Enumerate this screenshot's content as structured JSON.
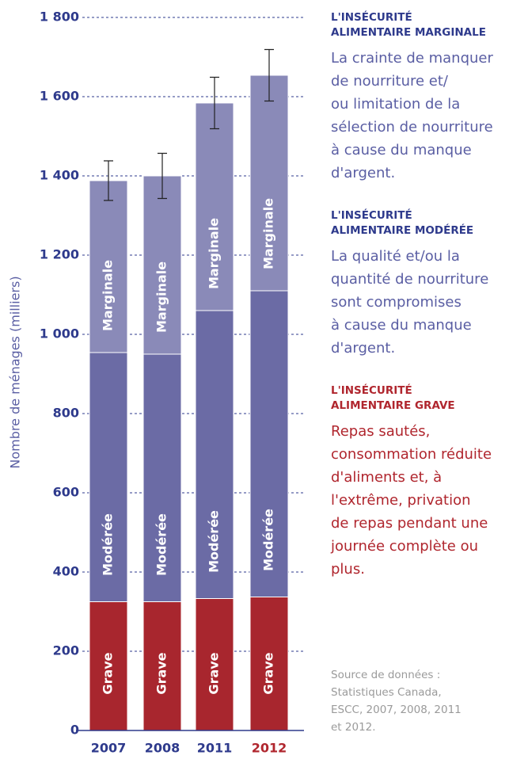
{
  "chart_data": {
    "type": "stacked_bar",
    "ylabel": "Nombre de ménages (milliers)",
    "categories": [
      "2007",
      "2008",
      "2011",
      "2012"
    ],
    "category_colors": [
      "#2e3a8c",
      "#2e3a8c",
      "#2e3a8c",
      "#b0262e"
    ],
    "series": [
      {
        "name": "Grave",
        "color": "#a8262e",
        "values": [
          325,
          325,
          333,
          337
        ]
      },
      {
        "name": "Modérée",
        "color": "#6b6ba5",
        "values": [
          629,
          625,
          727,
          773
        ]
      },
      {
        "name": "Marginale",
        "color": "#8a8ab8",
        "values": [
          434,
          450,
          524,
          544
        ]
      }
    ],
    "errors": [
      50,
      57,
      65,
      65
    ],
    "ylim": [
      0,
      1800
    ],
    "yticks": [
      0,
      200,
      400,
      600,
      800,
      {
        "value": 1000,
        "label": "1 000"
      },
      {
        "value": 1200,
        "label": "1 200"
      },
      {
        "value": 1400,
        "label": "1 400"
      },
      {
        "value": 1600,
        "label": "1 600"
      },
      {
        "value": 1800,
        "label": "1 800"
      }
    ],
    "grid": true
  },
  "notes": [
    {
      "color": "#2e3a8c",
      "body_color": "#5a5ea3",
      "heading": [
        "L'INSÉCURITÉ",
        "ALIMENTAIRE MARGINALE"
      ],
      "text": [
        "La crainte de manquer",
        "de nourriture et/",
        "ou limitation de la",
        "sélection de nourriture",
        "à cause du manque",
        "d'argent."
      ]
    },
    {
      "color": "#2e3a8c",
      "body_color": "#5a5ea3",
      "heading": [
        "L'INSÉCURITÉ",
        "ALIMENTAIRE MODÉRÉE"
      ],
      "text": [
        "La qualité et/ou la",
        "quantité de nourriture",
        "sont compromises",
        "à cause du manque",
        "d'argent."
      ]
    },
    {
      "color": "#b0262e",
      "body_color": "#b0262e",
      "heading": [
        "L'INSÉCURITÉ",
        "ALIMENTAIRE GRAVE"
      ],
      "text": [
        "Repas sautés,",
        "consommation réduite",
        "d'aliments et, à",
        "l'extrême, privation",
        "de repas pendant une",
        "journée complète ou",
        "plus."
      ]
    }
  ],
  "source": [
    "Source de données :",
    "Statistiques Canada,",
    "ESCC, 2007, 2008, 2011",
    "et 2012."
  ]
}
